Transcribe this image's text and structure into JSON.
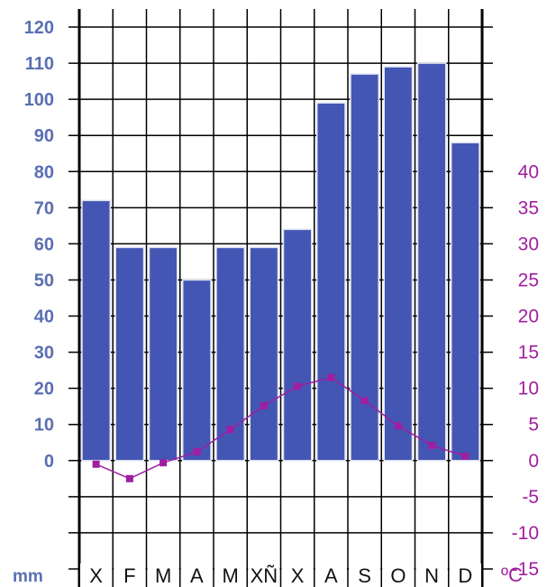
{
  "chart_data": {
    "type": "bar",
    "categories": [
      "X",
      "F",
      "M",
      "A",
      "M",
      "XÑ",
      "X",
      "A",
      "S",
      "O",
      "N",
      "D"
    ],
    "series": [
      {
        "type": "bar",
        "axis": "left",
        "color": "#4456b4",
        "values": [
          72,
          59,
          59,
          50,
          59,
          59,
          64,
          99,
          107,
          109,
          110,
          88
        ]
      },
      {
        "type": "line",
        "axis": "right",
        "color": "#a01ea0",
        "values": [
          -0.5,
          -2.5,
          -0.3,
          1.2,
          4.3,
          7.6,
          10.3,
          11.5,
          8.3,
          4.8,
          2.1,
          0.6
        ]
      }
    ],
    "ylabel": "mm",
    "y2label": "ºC",
    "ylim": [
      -35,
      125
    ],
    "y2lim": [
      -17.5,
      62.5
    ],
    "yticks": [
      "120",
      "110",
      "100",
      "90",
      "80",
      "70",
      "60",
      "50",
      "40",
      "30",
      "20",
      "10",
      "0"
    ],
    "y2ticks": [
      "40",
      "35",
      "30",
      "25",
      "20",
      "15",
      "10",
      "5",
      "0",
      "-5",
      "-10",
      "-15"
    ],
    "grid": true,
    "colors": {
      "bar": "#4456b4",
      "line": "#a01ea0",
      "left_axis_text": "#5a6fb4",
      "right_axis_text": "#a01ea0"
    }
  }
}
